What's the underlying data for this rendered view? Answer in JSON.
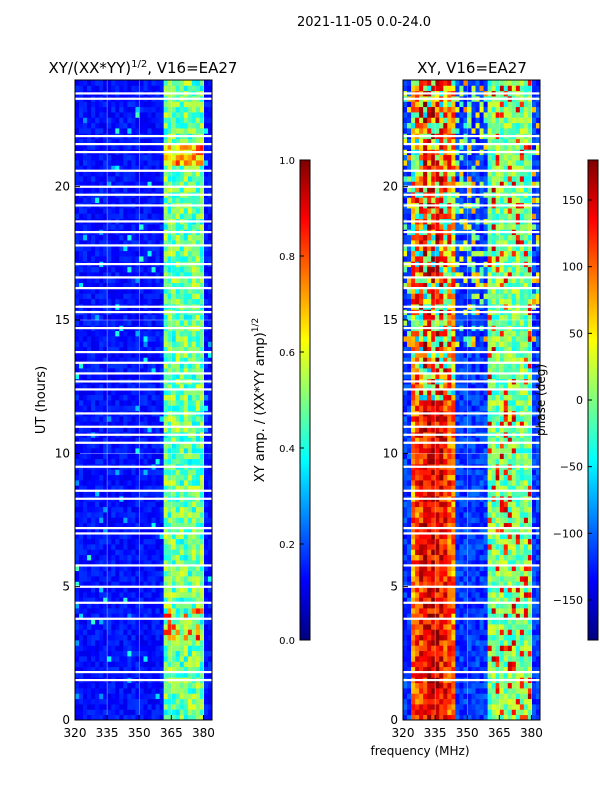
{
  "figure": {
    "suptitle": "2021-11-05 0.0-24.0",
    "xlabel_shared": "frequency (MHz)"
  },
  "colors": {
    "jet": [
      "#00007f",
      "#0000ff",
      "#007fff",
      "#00ffff",
      "#7fff7f",
      "#ffff00",
      "#ff7f00",
      "#ff0000",
      "#7f0000"
    ],
    "flag": "#ffffff",
    "gridline": "#ffffff"
  },
  "chart_data": [
    {
      "type": "heatmap",
      "title_main": "XY/(XX*YY)",
      "title_sup": "1/2",
      "title_rest": ", V16=EA27",
      "xlabel": "",
      "ylabel": "UT (hours)",
      "xlim": [
        320,
        384
      ],
      "ylim": [
        0,
        24
      ],
      "xticks": [
        320,
        335,
        350,
        365,
        380
      ],
      "yticks": [
        0,
        5,
        10,
        15,
        20
      ],
      "grid": true,
      "bright_band_mhz": [
        361,
        381
      ],
      "flagged_hours": [
        1.5,
        1.8,
        3.8,
        4.4,
        5.0,
        5.8,
        7.0,
        7.2,
        8.3,
        8.6,
        9.5,
        10.4,
        10.7,
        11.0,
        11.5,
        12.4,
        12.7,
        13.0,
        13.4,
        13.8,
        14.7,
        15.3,
        15.5,
        16.2,
        16.6,
        17.1,
        17.8,
        18.3,
        18.7,
        19.3,
        19.7,
        20.0,
        20.6,
        21.3,
        21.6,
        21.9,
        23.3,
        23.5
      ],
      "colorbar": {
        "label_main": "XY amp. / (XX*YY amp)",
        "label_sup": "1/2",
        "ticks": [
          "0.0",
          "0.2",
          "0.4",
          "0.6",
          "0.8",
          "1.0"
        ],
        "range": [
          0,
          1
        ]
      }
    },
    {
      "type": "heatmap",
      "title_main": "XY, V16=EA27",
      "xlabel": "frequency (MHz)",
      "ylabel": "",
      "xlim": [
        320,
        384
      ],
      "ylim": [
        0,
        24
      ],
      "xticks": [
        320,
        335,
        350,
        365,
        380
      ],
      "yticks": [
        0,
        5,
        10,
        15,
        20
      ],
      "grid": true,
      "phase_hot_mhz": [
        323,
        345
      ],
      "phase_cool_mhz": [
        359,
        381
      ],
      "flagged_hours": [
        1.5,
        1.8,
        3.8,
        4.4,
        5.0,
        5.8,
        7.0,
        7.2,
        8.3,
        8.6,
        9.5,
        10.4,
        10.7,
        11.0,
        11.5,
        12.4,
        12.7,
        13.0,
        13.4,
        13.8,
        14.7,
        15.3,
        15.5,
        16.2,
        16.6,
        17.1,
        17.8,
        18.3,
        18.7,
        19.3,
        19.7,
        20.0,
        20.6,
        21.3,
        21.6,
        21.9,
        23.3,
        23.5
      ],
      "colorbar": {
        "label_main": "phase (deg)",
        "ticks": [
          "−150",
          "−100",
          "−50",
          "0",
          "50",
          "100",
          "150"
        ],
        "range": [
          -180,
          180
        ]
      }
    }
  ]
}
